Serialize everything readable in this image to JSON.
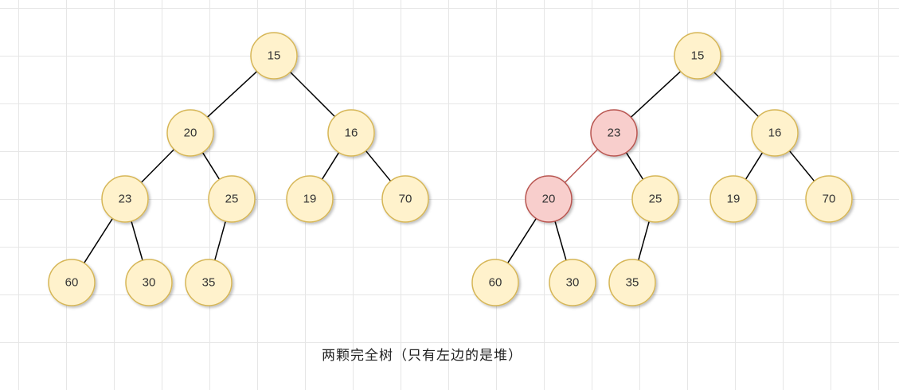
{
  "caption": "两颗完全树（只有左边的是堆）",
  "colors": {
    "node_fill": "#fff2cc",
    "node_stroke": "#d6b656",
    "highlight_fill": "#f8cecc",
    "highlight_stroke": "#b85450",
    "edge": "#000000",
    "highlight_edge": "#b85450"
  },
  "trees": [
    {
      "name": "tree-left",
      "nodes": [
        {
          "id": "n15",
          "label": "15"
        },
        {
          "id": "n20",
          "label": "20"
        },
        {
          "id": "n16",
          "label": "16"
        },
        {
          "id": "n23",
          "label": "23"
        },
        {
          "id": "n25",
          "label": "25"
        },
        {
          "id": "n19",
          "label": "19"
        },
        {
          "id": "n70",
          "label": "70"
        },
        {
          "id": "n60",
          "label": "60"
        },
        {
          "id": "n30",
          "label": "30"
        },
        {
          "id": "n35",
          "label": "35"
        }
      ],
      "edges": [
        [
          "n15",
          "n20"
        ],
        [
          "n15",
          "n16"
        ],
        [
          "n20",
          "n23"
        ],
        [
          "n20",
          "n25"
        ],
        [
          "n16",
          "n19"
        ],
        [
          "n16",
          "n70"
        ],
        [
          "n23",
          "n60"
        ],
        [
          "n23",
          "n30"
        ],
        [
          "n25",
          "n35"
        ]
      ]
    },
    {
      "name": "tree-right",
      "nodes": [
        {
          "id": "m15",
          "label": "15"
        },
        {
          "id": "m23",
          "label": "23",
          "highlight": true
        },
        {
          "id": "m16",
          "label": "16"
        },
        {
          "id": "m20",
          "label": "20",
          "highlight": true
        },
        {
          "id": "m25",
          "label": "25"
        },
        {
          "id": "m19",
          "label": "19"
        },
        {
          "id": "m70",
          "label": "70"
        },
        {
          "id": "m60",
          "label": "60"
        },
        {
          "id": "m30",
          "label": "30"
        },
        {
          "id": "m35",
          "label": "35"
        }
      ],
      "edges": [
        [
          "m15",
          "m23"
        ],
        [
          "m15",
          "m16"
        ],
        [
          "m23",
          "m20",
          true
        ],
        [
          "m23",
          "m25"
        ],
        [
          "m16",
          "m19"
        ],
        [
          "m16",
          "m70"
        ],
        [
          "m20",
          "m60"
        ],
        [
          "m20",
          "m30"
        ],
        [
          "m25",
          "m35"
        ]
      ]
    }
  ]
}
